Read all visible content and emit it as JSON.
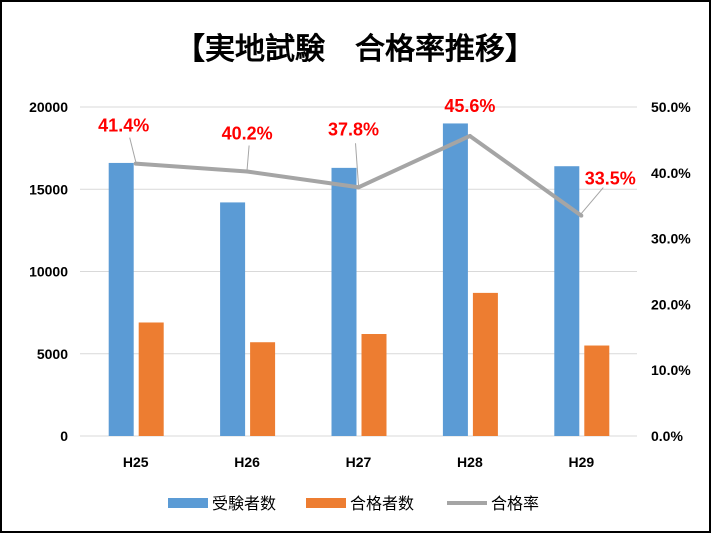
{
  "chart_data": {
    "type": "bar",
    "title": "【実地試験　合格率推移】",
    "categories": [
      "H25",
      "H26",
      "H27",
      "H28",
      "H29"
    ],
    "series": [
      {
        "name": "受験者数",
        "kind": "bar",
        "axis": "left",
        "color": "#5b9bd5",
        "values": [
          16600,
          14200,
          16300,
          19000,
          16400
        ]
      },
      {
        "name": "合格者数",
        "kind": "bar",
        "axis": "left",
        "color": "#ed7d31",
        "values": [
          6900,
          5700,
          6200,
          8700,
          5500
        ]
      },
      {
        "name": "合格率",
        "kind": "line",
        "axis": "right",
        "color": "#a5a5a5",
        "values": [
          41.4,
          40.2,
          37.8,
          45.6,
          33.5
        ]
      }
    ],
    "data_labels": [
      "41.4%",
      "40.2%",
      "37.8%",
      "45.6%",
      "33.5%"
    ],
    "data_label_color": "#ff0000",
    "left_axis": {
      "ylim": [
        0,
        20000
      ],
      "ticks": [
        "0",
        "5000",
        "10000",
        "15000",
        "20000"
      ]
    },
    "right_axis": {
      "ylim": [
        0,
        50
      ],
      "ticks": [
        "0.0%",
        "10.0%",
        "20.0%",
        "30.0%",
        "40.0%",
        "50.0%"
      ]
    },
    "grid": true,
    "legend": "bottom"
  }
}
